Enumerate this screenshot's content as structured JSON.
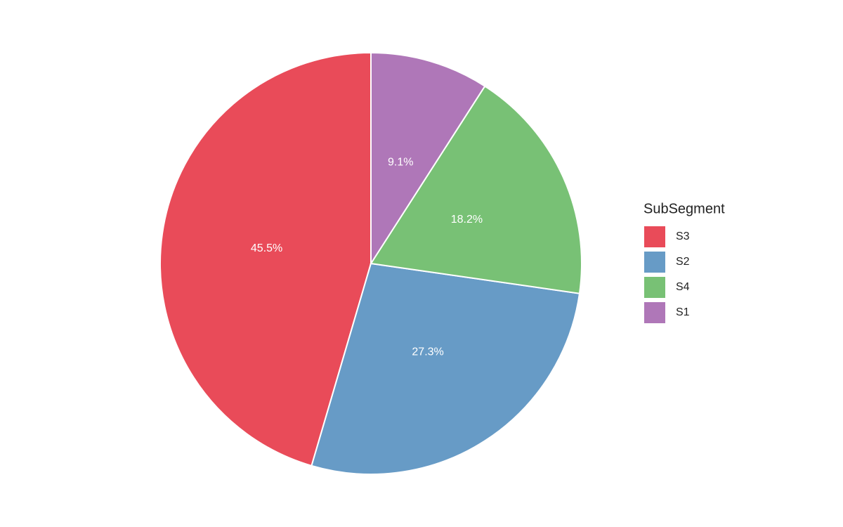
{
  "chart_data": {
    "type": "pie",
    "legend_title": "SubSegment",
    "legend_position": "right",
    "categories": [
      "S3",
      "S2",
      "S4",
      "S1"
    ],
    "values": [
      45.5,
      27.3,
      18.2,
      9.1
    ],
    "value_labels": [
      "45.5%",
      "27.3%",
      "18.2%",
      "9.1%"
    ],
    "colors": [
      "#e94b59",
      "#679bc6",
      "#78c175",
      "#af77b8"
    ]
  }
}
